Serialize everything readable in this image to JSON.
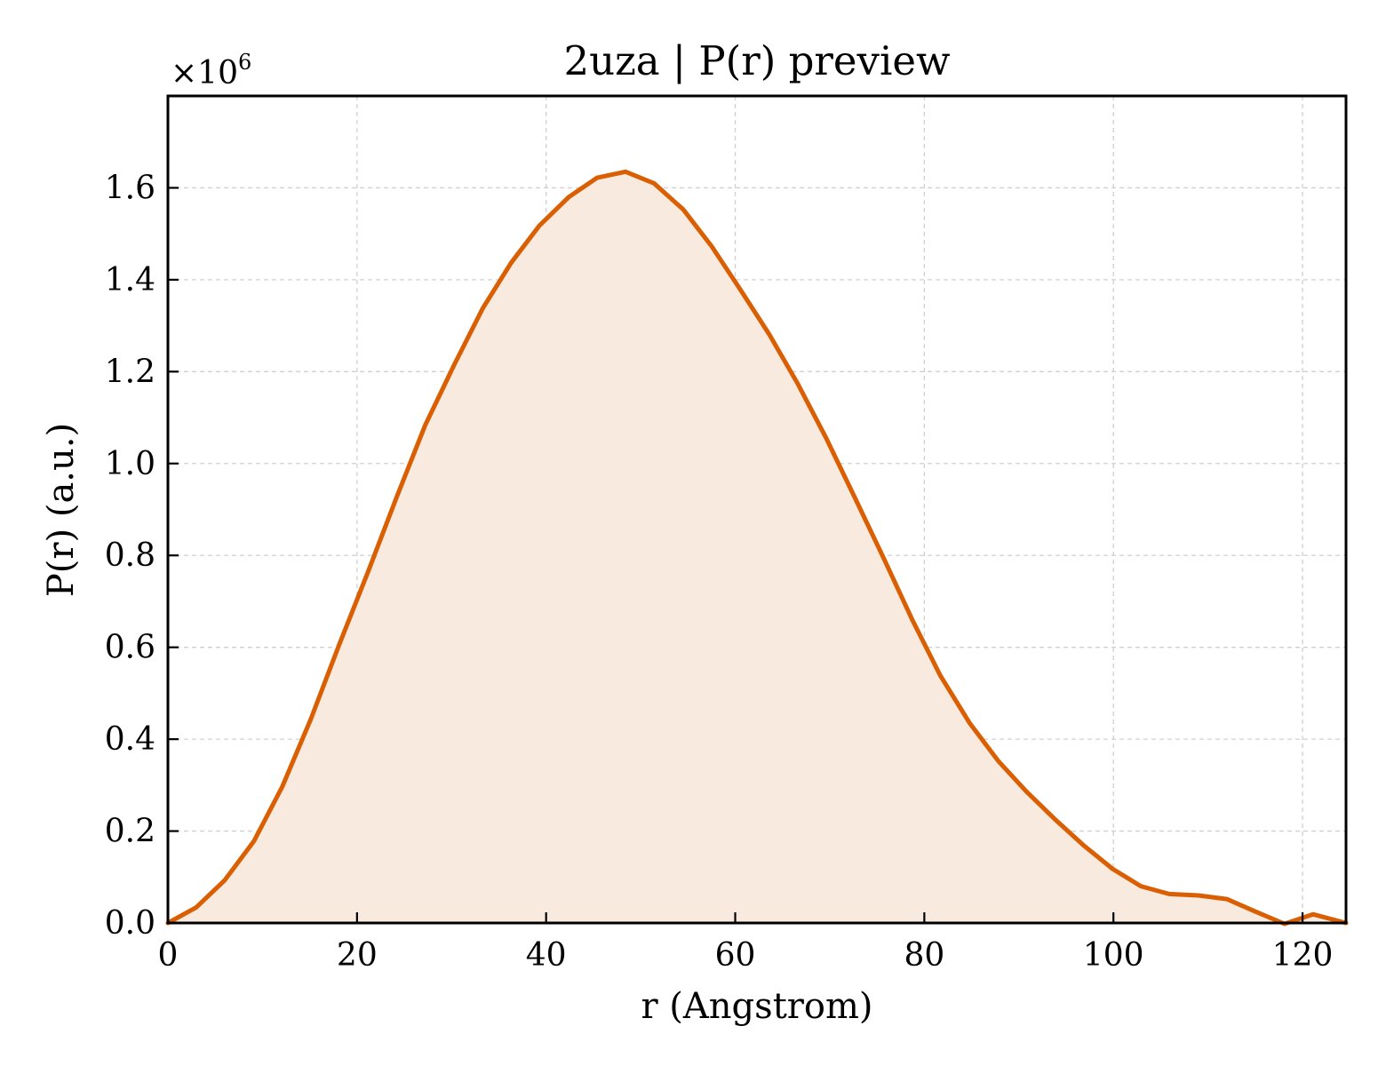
{
  "chart_data": {
    "type": "area",
    "title": "2uza | P(r) preview",
    "xlabel": "r (Angstrom)",
    "ylabel": "P(r) (a.u.)",
    "y_offset_text": "×10",
    "y_offset_exponent": "6",
    "xlim": [
      0,
      124.6
    ],
    "ylim": [
      0,
      1.8
    ],
    "x_ticks": [
      0,
      20,
      40,
      60,
      80,
      100,
      120
    ],
    "x_tick_labels": [
      "0",
      "20",
      "40",
      "60",
      "80",
      "100",
      "120"
    ],
    "y_ticks": [
      0,
      0.2,
      0.4,
      0.6,
      0.8,
      1.0,
      1.2,
      1.4,
      1.6
    ],
    "y_tick_labels": [
      "0.0",
      "0.2",
      "0.4",
      "0.6",
      "0.8",
      "1.0",
      "1.2",
      "1.4",
      "1.6"
    ],
    "grid": true,
    "line_color": "#d95f02",
    "fill_color": "#f8eadf",
    "series": [
      {
        "x": [
          0,
          3.0,
          6.0,
          9.1,
          12.1,
          15.1,
          18.1,
          21.2,
          24.2,
          27.2,
          30.3,
          33.3,
          36.3,
          39.3,
          42.4,
          45.4,
          48.4,
          51.4,
          54.5,
          57.5,
          60.5,
          63.6,
          66.6,
          69.6,
          72.6,
          75.7,
          78.7,
          81.7,
          84.8,
          87.8,
          90.8,
          93.8,
          96.9,
          99.9,
          102.9,
          105.9,
          109.0,
          112.0,
          115.0,
          118.1,
          121.1,
          124.6
        ],
        "y": [
          0.0,
          0.034,
          0.093,
          0.178,
          0.297,
          0.443,
          0.605,
          0.766,
          0.927,
          1.083,
          1.216,
          1.338,
          1.437,
          1.518,
          1.58,
          1.622,
          1.635,
          1.61,
          1.553,
          1.473,
          1.38,
          1.281,
          1.174,
          1.056,
          0.928,
          0.794,
          0.661,
          0.538,
          0.435,
          0.353,
          0.286,
          0.226,
          0.168,
          0.118,
          0.08,
          0.063,
          0.06,
          0.052,
          0.025,
          -0.002,
          0.019,
          0.0
        ]
      }
    ]
  }
}
